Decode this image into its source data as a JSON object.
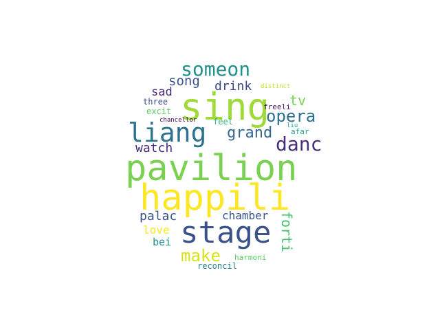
{
  "words": [
    {
      "text": "pavilion",
      "color": "#7ad151"
    },
    {
      "text": "happili",
      "color": "#fde725"
    },
    {
      "text": "sing",
      "color": "#a0da39"
    },
    {
      "text": "stage",
      "color": "#3b528b"
    },
    {
      "text": "liang",
      "color": "#2c728e"
    },
    {
      "text": "someon",
      "color": "#21918c"
    },
    {
      "text": "danc",
      "color": "#472d7b"
    },
    {
      "text": "opera",
      "color": "#2c728e"
    },
    {
      "text": "grand",
      "color": "#31688e"
    },
    {
      "text": "make",
      "color": "#d8e219"
    },
    {
      "text": "song",
      "color": "#3b528b"
    },
    {
      "text": "drink",
      "color": "#3e4989"
    },
    {
      "text": "tv",
      "color": "#7ad151"
    },
    {
      "text": "watch",
      "color": "#482878"
    },
    {
      "text": "palac",
      "color": "#3b528b"
    },
    {
      "text": "chamber",
      "color": "#3b528b"
    },
    {
      "text": "forti",
      "color": "#4ac16d"
    },
    {
      "text": "love",
      "color": "#fde725"
    },
    {
      "text": "bei",
      "color": "#21918c"
    },
    {
      "text": "sad",
      "color": "#482878"
    },
    {
      "text": "three",
      "color": "#3e4989"
    },
    {
      "text": "excit",
      "color": "#5ec962"
    },
    {
      "text": "feel",
      "color": "#35b779"
    },
    {
      "text": "freeli",
      "color": "#471164"
    },
    {
      "text": "chancellor",
      "color": "#440154"
    },
    {
      "text": "liu",
      "color": "#20a486"
    },
    {
      "text": "afar",
      "color": "#1f9e89"
    },
    {
      "text": "distinct",
      "color": "#c2df23"
    },
    {
      "text": "harmoni",
      "color": "#5ec962"
    },
    {
      "text": "reconcil",
      "color": "#26828e"
    }
  ]
}
